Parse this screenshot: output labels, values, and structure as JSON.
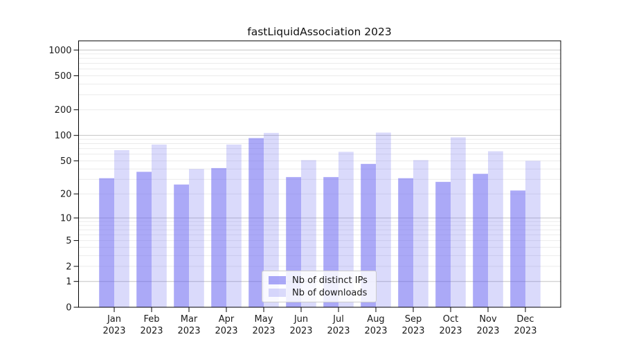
{
  "title": "fastLiquidAssociation 2023",
  "legend": {
    "items": [
      {
        "label": "Nb of distinct IPs"
      },
      {
        "label": "Nb of downloads"
      }
    ]
  },
  "colors": {
    "ips_bar": "rgba(102,99,240,0.55)",
    "downloads_bar": "rgba(102,99,240,0.24)",
    "grid_major": "#c3c3c3",
    "grid_minor": "#ebebeb",
    "axis": "#000000",
    "text": "#1a1a1a"
  },
  "chart_data": {
    "type": "bar",
    "title": "fastLiquidAssociation 2023",
    "categories": [
      "Jan",
      "Feb",
      "Mar",
      "Apr",
      "May",
      "Jun",
      "Jul",
      "Aug",
      "Sep",
      "Oct",
      "Nov",
      "Dec"
    ],
    "year_label": "2023",
    "series": [
      {
        "name": "Nb of distinct IPs",
        "values": [
          31,
          37,
          26,
          41,
          93,
          32,
          32,
          46,
          31,
          28,
          35,
          22
        ]
      },
      {
        "name": "Nb of downloads",
        "values": [
          67,
          78,
          40,
          78,
          107,
          51,
          64,
          108,
          51,
          95,
          65,
          50
        ]
      }
    ],
    "xlabel": "",
    "ylabel": "",
    "yscale": "log1p",
    "yticks": [
      0,
      1,
      2,
      5,
      10,
      20,
      50,
      100,
      200,
      500,
      1000
    ],
    "ylim": [
      0,
      1280
    ],
    "grid": "horizontal major and minor gridlines",
    "legend_position": "lower center inside plot"
  }
}
